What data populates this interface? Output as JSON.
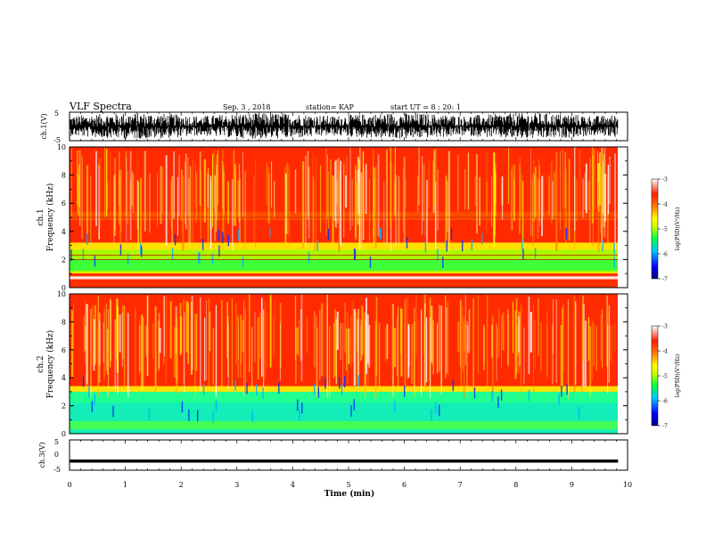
{
  "header": {
    "title": "VLF Spectra",
    "date": "Sep. 3 , 2018",
    "station": "station= KAP",
    "start": "start UT =  8 : 20: 1"
  },
  "chart_data": [
    {
      "type": "line",
      "ylabel": "ch.1(V)",
      "ylim": [
        -5,
        5
      ],
      "yticks": [
        "5",
        "-5"
      ],
      "xlim": [
        0,
        10
      ],
      "description_series": "dense oscillating voltage trace, range about -5 to 5 V"
    },
    {
      "type": "heatmap",
      "ylabel_lines": [
        "ch.1",
        "Frequency (kHz)"
      ],
      "ylim": [
        0,
        10
      ],
      "yticks": [
        "0",
        "2",
        "4",
        "6",
        "8",
        "10"
      ],
      "xlim": [
        0,
        10
      ],
      "colorbar": {
        "label": "log(PSD)(V²/Hz)",
        "range": [
          -7,
          -3
        ],
        "ticks": [
          "-3",
          "-4",
          "-5",
          "-6",
          "-7"
        ],
        "colors": [
          "#000080",
          "#0000ff",
          "#00c8ff",
          "#00ff40",
          "#c8ff00",
          "#ffff00",
          "#ff8000",
          "#ff2000",
          "#ffffff"
        ]
      }
    },
    {
      "type": "heatmap",
      "ylabel_lines": [
        "ch.2",
        "Frequency (kHz)"
      ],
      "ylim": [
        0,
        10
      ],
      "yticks": [
        "0",
        "2",
        "4",
        "6",
        "8",
        "10"
      ],
      "xlim": [
        0,
        10
      ],
      "colorbar": {
        "label": "log(PSD)(V²/Hz)",
        "range": [
          -7,
          -3
        ],
        "ticks": [
          "-3",
          "-4",
          "-5",
          "-6",
          "-7"
        ]
      }
    },
    {
      "type": "line",
      "ylabel": "ch.3(V)",
      "ylim": [
        -5,
        5
      ],
      "yticks": [
        "5",
        "0",
        "-5"
      ],
      "xlim": [
        0,
        10
      ],
      "series": [
        {
          "x": [
            0,
            9.83
          ],
          "y": [
            -2,
            -2
          ]
        }
      ]
    }
  ],
  "xaxis": {
    "label": "Time (min)",
    "ticks": [
      "0",
      "1",
      "2",
      "3",
      "4",
      "5",
      "6",
      "7",
      "8",
      "9",
      "10"
    ]
  }
}
